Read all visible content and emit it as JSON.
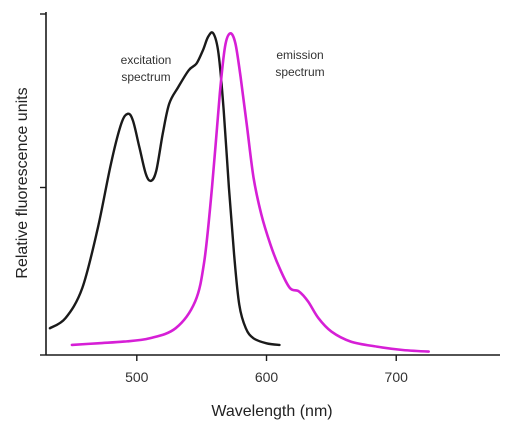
{
  "chart_data": {
    "type": "line",
    "xlabel": "Wavelength (nm)",
    "ylabel": "Relative fluorescence units",
    "xlim": [
      430,
      780
    ],
    "ylim": [
      0,
      1.0
    ],
    "x_ticks": [
      500,
      600,
      700
    ],
    "x_tick_labels": [
      "500",
      "600",
      "700"
    ],
    "y_ticks": [
      0,
      0.5,
      1.0
    ],
    "grid": false,
    "legend": "none",
    "series": [
      {
        "name": "excitation spectrum",
        "label_lines": [
          "excitation",
          "spectrum"
        ],
        "color": "#1a1a1a",
        "x": [
          433,
          445,
          458,
          470,
          480,
          488,
          493,
          497,
          502,
          507,
          511,
          515,
          520,
          525,
          532,
          540,
          546,
          551,
          555,
          559,
          563,
          567,
          571,
          575,
          579,
          584,
          590,
          600,
          610
        ],
        "y": [
          0.08,
          0.11,
          0.2,
          0.38,
          0.57,
          0.69,
          0.72,
          0.7,
          0.62,
          0.54,
          0.52,
          0.55,
          0.66,
          0.75,
          0.8,
          0.85,
          0.87,
          0.91,
          0.95,
          0.96,
          0.9,
          0.73,
          0.5,
          0.3,
          0.15,
          0.08,
          0.05,
          0.035,
          0.03
        ]
      },
      {
        "name": "emission spectrum",
        "label_lines": [
          "emission",
          "spectrum"
        ],
        "color": "#d61fd6",
        "x": [
          450,
          470,
          490,
          510,
          530,
          545,
          552,
          558,
          564,
          568,
          572,
          576,
          580,
          585,
          590,
          596,
          603,
          610,
          618,
          625,
          632,
          640,
          650,
          665,
          685,
          705,
          725
        ],
        "y": [
          0.03,
          0.035,
          0.04,
          0.05,
          0.08,
          0.16,
          0.28,
          0.5,
          0.78,
          0.92,
          0.96,
          0.93,
          0.83,
          0.68,
          0.53,
          0.42,
          0.33,
          0.26,
          0.2,
          0.19,
          0.16,
          0.11,
          0.07,
          0.04,
          0.025,
          0.015,
          0.01
        ]
      }
    ]
  }
}
